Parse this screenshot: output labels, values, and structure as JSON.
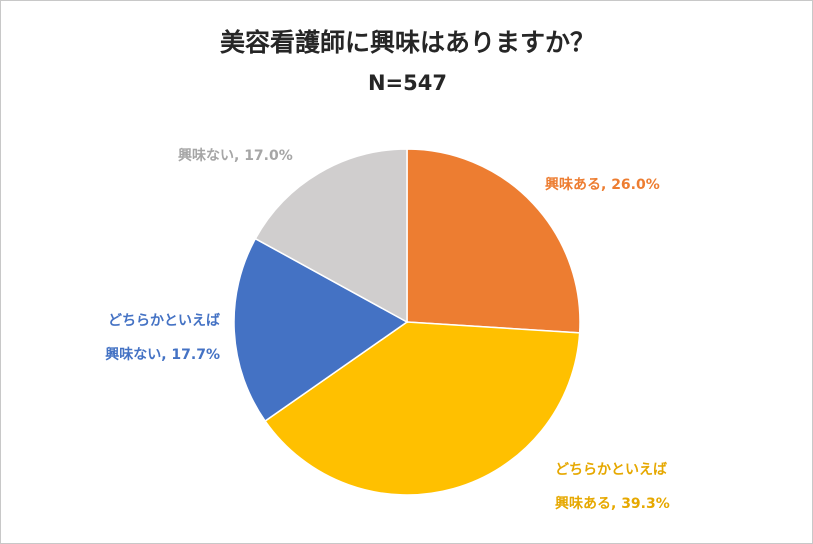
{
  "chart_data": {
    "type": "pie",
    "title": "美容看護師に興味はありますか？",
    "subtitle": "N=547",
    "slices": [
      {
        "label_lines": [
          "興味ある, 26.0%"
        ],
        "value": 26.0,
        "color": "#ED7D31"
      },
      {
        "label_lines": [
          "どちらかといえば",
          "興味ある, 39.3%"
        ],
        "value": 39.3,
        "color": "#FFC000"
      },
      {
        "label_lines": [
          "どちらかといえば",
          "興味ない, 17.7%"
        ],
        "value": 17.7,
        "color": "#4472C4"
      },
      {
        "label_lines": [
          "興味ない, 17.0%"
        ],
        "value": 17.0,
        "color": "#D0CECE"
      }
    ]
  },
  "label_colors": {
    "興味ある": "#ED7D31",
    "どちらかといえば興味ある": "#E6A800",
    "どちらかといえば興味ない": "#4472C4",
    "興味ない": "#A6A6A6"
  }
}
